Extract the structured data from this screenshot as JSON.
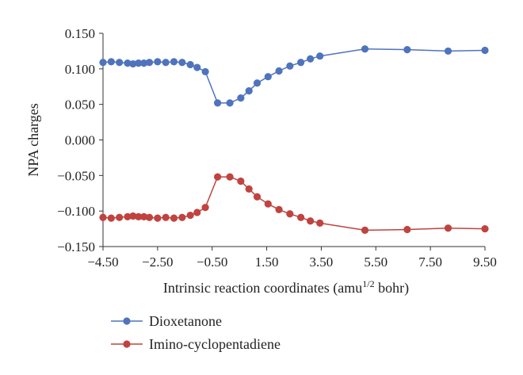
{
  "chart_data": {
    "type": "line",
    "title": "",
    "xlabel": "Intrinsic reaction coordinates (amu",
    "xlabel_sup": "1/2",
    "xlabel_suffix": " bohr)",
    "ylabel": "NPA charges",
    "xlim": [
      -4.5,
      9.5
    ],
    "ylim": [
      -0.15,
      0.15
    ],
    "x_ticks": [
      "-4.50",
      "-2.50",
      "-0.50",
      "1.50",
      "3.50",
      "5.50",
      "7.50",
      "9.50"
    ],
    "x_tick_values": [
      -4.5,
      -2.5,
      -0.5,
      1.5,
      3.5,
      5.5,
      7.5,
      9.5
    ],
    "y_ticks": [
      "0.150",
      "0.100",
      "0.050",
      "0.000",
      "−0.050",
      "−0.100",
      "−0.150"
    ],
    "y_tick_values": [
      0.15,
      0.1,
      0.05,
      0.0,
      -0.05,
      -0.1,
      -0.15
    ],
    "grid": false,
    "legend_position": "bottom-left",
    "series": [
      {
        "name": "Dioxetanone",
        "color": "#4f73bd",
        "x": [
          -4.5,
          -4.2,
          -3.9,
          -3.6,
          -3.4,
          -3.2,
          -3.0,
          -2.8,
          -2.5,
          -2.2,
          -1.9,
          -1.6,
          -1.3,
          -1.05,
          -0.75,
          -0.3,
          0.15,
          0.55,
          0.85,
          1.15,
          1.55,
          1.95,
          2.35,
          2.75,
          3.1,
          3.45,
          5.1,
          6.65,
          8.15,
          9.5
        ],
        "y": [
          0.109,
          0.11,
          0.109,
          0.108,
          0.107,
          0.108,
          0.108,
          0.109,
          0.11,
          0.109,
          0.11,
          0.109,
          0.106,
          0.102,
          0.096,
          0.052,
          0.052,
          0.059,
          0.069,
          0.08,
          0.089,
          0.097,
          0.104,
          0.109,
          0.114,
          0.118,
          0.128,
          0.127,
          0.125,
          0.126
        ]
      },
      {
        "name": "Imino-cyclopentadiene",
        "color": "#c0433f",
        "x": [
          -4.5,
          -4.2,
          -3.9,
          -3.6,
          -3.4,
          -3.2,
          -3.0,
          -2.8,
          -2.5,
          -2.2,
          -1.9,
          -1.6,
          -1.3,
          -1.05,
          -0.75,
          -0.3,
          0.15,
          0.55,
          0.85,
          1.15,
          1.55,
          1.95,
          2.35,
          2.75,
          3.1,
          3.45,
          5.1,
          6.65,
          8.15,
          9.5
        ],
        "y": [
          -0.109,
          -0.11,
          -0.109,
          -0.108,
          -0.107,
          -0.108,
          -0.108,
          -0.109,
          -0.11,
          -0.109,
          -0.11,
          -0.109,
          -0.106,
          -0.102,
          -0.095,
          -0.052,
          -0.052,
          -0.058,
          -0.069,
          -0.08,
          -0.09,
          -0.098,
          -0.104,
          -0.109,
          -0.114,
          -0.117,
          -0.127,
          -0.126,
          -0.124,
          -0.125
        ]
      }
    ]
  }
}
